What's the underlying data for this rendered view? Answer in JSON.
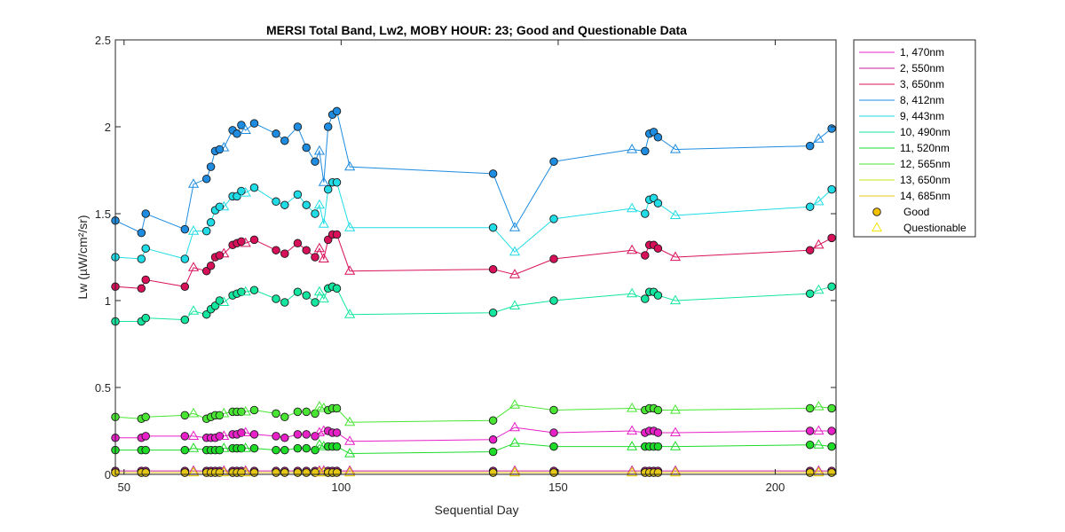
{
  "chart_data": {
    "type": "line",
    "title": "MERSI Total Band,  Lw2, MOBY HOUR: 23;  Good and Questionable Data",
    "xlabel": "Sequential Day",
    "ylabel": "Lw (µW/cm²/sr)",
    "xlim": [
      48,
      214
    ],
    "ylim": [
      0,
      2.5
    ],
    "xticks": [
      50,
      100,
      150,
      200
    ],
    "yticks": [
      0,
      0.5,
      1,
      1.5,
      2,
      2.5
    ],
    "xtick_labels": [
      "50",
      "100",
      "150",
      "200"
    ],
    "ytick_labels": [
      "0",
      "0.5",
      "1",
      "1.5",
      "2",
      "2.5"
    ],
    "grid": false,
    "legend_position": "outside-top-right",
    "marker_legend": [
      {
        "label": "Good",
        "marker": "circle",
        "color": "#f2c200"
      },
      {
        "label": "Questionable",
        "marker": "triangle",
        "color": "#f2e600"
      }
    ],
    "x": [
      48,
      54,
      55,
      64,
      66,
      69,
      70,
      71,
      72,
      73,
      75,
      76,
      77,
      78,
      80,
      85,
      87,
      90,
      92,
      94,
      95,
      96,
      97,
      98,
      99,
      102,
      135,
      140,
      149,
      167,
      170,
      171,
      172,
      173,
      177,
      208,
      210,
      213
    ],
    "quality": [
      "G",
      "G",
      "G",
      "G",
      "Q",
      "G",
      "G",
      "G",
      "G",
      "Q",
      "G",
      "G",
      "G",
      "Q",
      "G",
      "G",
      "G",
      "G",
      "G",
      "G",
      "Q",
      "Q",
      "G",
      "G",
      "G",
      "Q",
      "G",
      "Q",
      "G",
      "Q",
      "G",
      "G",
      "G",
      "G",
      "Q",
      "G",
      "Q",
      "G"
    ],
    "series": [
      {
        "name": "1, 470nm",
        "color": "#e820c8",
        "values": [
          0.21,
          0.21,
          0.22,
          0.22,
          0.22,
          0.21,
          0.21,
          0.21,
          0.22,
          0.22,
          0.23,
          0.23,
          0.24,
          0.24,
          0.23,
          0.22,
          0.21,
          0.23,
          0.23,
          0.22,
          0.24,
          0.25,
          0.25,
          0.24,
          0.24,
          0.19,
          0.2,
          0.27,
          0.24,
          0.25,
          0.24,
          0.25,
          0.25,
          0.24,
          0.24,
          0.25,
          0.25,
          0.25
        ]
      },
      {
        "name": "2, 550nm",
        "color": "#c81ea0",
        "values": [
          0.02,
          0.02,
          0.02,
          0.02,
          0.02,
          0.02,
          0.02,
          0.02,
          0.02,
          0.02,
          0.02,
          0.02,
          0.02,
          0.02,
          0.02,
          0.02,
          0.02,
          0.02,
          0.02,
          0.02,
          0.02,
          0.02,
          0.02,
          0.02,
          0.02,
          0.02,
          0.02,
          0.02,
          0.02,
          0.02,
          0.02,
          0.02,
          0.02,
          0.02,
          0.02,
          0.02,
          0.02,
          0.02
        ]
      },
      {
        "name": "3, 650nm",
        "color": "#d8105a",
        "values": [
          1.08,
          1.07,
          1.12,
          1.08,
          1.19,
          1.17,
          1.2,
          1.25,
          1.26,
          1.27,
          1.32,
          1.33,
          1.34,
          1.33,
          1.35,
          1.29,
          1.27,
          1.33,
          1.29,
          1.25,
          1.3,
          1.24,
          1.35,
          1.38,
          1.38,
          1.17,
          1.18,
          1.15,
          1.24,
          1.29,
          1.26,
          1.32,
          1.32,
          1.3,
          1.25,
          1.29,
          1.32,
          1.36
        ]
      },
      {
        "name": "8, 412nm",
        "color": "#1e8ce0",
        "values": [
          1.46,
          1.39,
          1.5,
          1.41,
          1.67,
          1.7,
          1.77,
          1.86,
          1.87,
          1.88,
          1.98,
          1.96,
          2.01,
          1.98,
          2.02,
          1.96,
          1.92,
          2.0,
          1.88,
          1.8,
          1.86,
          1.68,
          2.0,
          2.07,
          2.09,
          1.77,
          1.73,
          1.42,
          1.8,
          1.87,
          1.86,
          1.96,
          1.97,
          1.94,
          1.87,
          1.89,
          1.93,
          1.99
        ]
      },
      {
        "name": "9, 443nm",
        "color": "#20dce6",
        "values": [
          1.25,
          1.24,
          1.3,
          1.24,
          1.4,
          1.4,
          1.45,
          1.52,
          1.54,
          1.54,
          1.6,
          1.6,
          1.63,
          1.62,
          1.65,
          1.57,
          1.55,
          1.61,
          1.55,
          1.5,
          1.55,
          1.44,
          1.64,
          1.68,
          1.68,
          1.42,
          1.42,
          1.28,
          1.47,
          1.53,
          1.5,
          1.58,
          1.59,
          1.56,
          1.49,
          1.54,
          1.57,
          1.64
        ]
      },
      {
        "name": "10, 490nm",
        "color": "#14e6a0",
        "values": [
          0.88,
          0.88,
          0.9,
          0.89,
          0.94,
          0.92,
          0.95,
          0.97,
          1.0,
          0.99,
          1.03,
          1.04,
          1.05,
          1.05,
          1.06,
          1.01,
          0.99,
          1.05,
          1.03,
          0.99,
          1.05,
          1.01,
          1.07,
          1.08,
          1.07,
          0.92,
          0.93,
          0.97,
          1.0,
          1.04,
          1.01,
          1.05,
          1.05,
          1.03,
          1.0,
          1.04,
          1.06,
          1.08
        ]
      },
      {
        "name": "11, 520nm",
        "color": "#1edc28",
        "values": [
          0.14,
          0.14,
          0.14,
          0.14,
          0.15,
          0.14,
          0.14,
          0.14,
          0.14,
          0.15,
          0.15,
          0.15,
          0.15,
          0.15,
          0.15,
          0.14,
          0.14,
          0.15,
          0.15,
          0.14,
          0.17,
          0.16,
          0.16,
          0.16,
          0.16,
          0.12,
          0.13,
          0.18,
          0.16,
          0.16,
          0.16,
          0.16,
          0.16,
          0.16,
          0.16,
          0.17,
          0.17,
          0.16
        ]
      },
      {
        "name": "12, 565nm",
        "color": "#48e632",
        "values": [
          0.33,
          0.32,
          0.33,
          0.34,
          0.35,
          0.32,
          0.33,
          0.34,
          0.34,
          0.35,
          0.36,
          0.36,
          0.36,
          0.36,
          0.37,
          0.35,
          0.33,
          0.36,
          0.36,
          0.35,
          0.39,
          0.38,
          0.37,
          0.38,
          0.38,
          0.3,
          0.31,
          0.4,
          0.37,
          0.38,
          0.37,
          0.38,
          0.38,
          0.37,
          0.37,
          0.38,
          0.39,
          0.38
        ]
      },
      {
        "name": "13, 650nm",
        "color": "#c8e614",
        "values": [
          0.01,
          0.01,
          0.01,
          0.01,
          0.01,
          0.01,
          0.01,
          0.01,
          0.01,
          0.01,
          0.01,
          0.01,
          0.01,
          0.01,
          0.01,
          0.01,
          0.01,
          0.01,
          0.01,
          0.01,
          0.01,
          0.01,
          0.01,
          0.01,
          0.01,
          0.01,
          0.01,
          0.01,
          0.01,
          0.01,
          0.01,
          0.01,
          0.01,
          0.01,
          0.01,
          0.01,
          0.01,
          0.01
        ]
      },
      {
        "name": "14, 685nm",
        "color": "#e6c814",
        "values": [
          0.01,
          0.01,
          0.01,
          0.01,
          0.01,
          0.01,
          0.01,
          0.01,
          0.01,
          0.01,
          0.01,
          0.01,
          0.01,
          0.01,
          0.01,
          0.01,
          0.01,
          0.01,
          0.01,
          0.01,
          0.01,
          0.01,
          0.01,
          0.01,
          0.01,
          0.01,
          0.01,
          0.01,
          0.01,
          0.01,
          0.01,
          0.01,
          0.01,
          0.01,
          0.01,
          0.01,
          0.01,
          0.01
        ]
      }
    ]
  }
}
